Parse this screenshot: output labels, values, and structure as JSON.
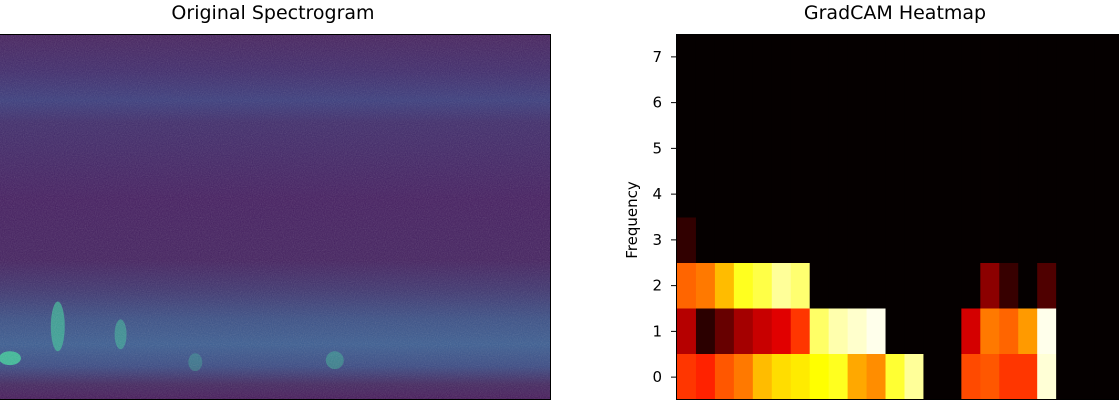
{
  "chart_data": [
    {
      "type": "heatmap",
      "title": "Original Spectrogram",
      "xlabel": "",
      "ylabel": "",
      "colormap": "viridis",
      "colors": {
        "background": "#41195f",
        "band": "#3a6a98",
        "highlight": "#3fc09a"
      }
    },
    {
      "type": "heatmap",
      "title": "GradCAM Heatmap",
      "xlabel": "",
      "ylabel": "Frequency",
      "colormap": "hot",
      "y_ticks": [
        0,
        1,
        2,
        3,
        4,
        5,
        6,
        7
      ],
      "ylim": [
        -0.5,
        7.5
      ],
      "x_cells": 23,
      "rows": [
        [
          0.45,
          0.42,
          0.5,
          0.55,
          0.65,
          0.7,
          0.72,
          0.75,
          0.78,
          0.62,
          0.58,
          0.8,
          0.9,
          0.0,
          0.0,
          0.48,
          0.5,
          0.45,
          0.45,
          0.96,
          0.0,
          0.0,
          0.0
        ],
        [
          0.25,
          0.02,
          0.12,
          0.22,
          0.28,
          0.32,
          0.45,
          0.85,
          0.92,
          0.95,
          0.98,
          0.0,
          0.0,
          0.0,
          0.0,
          0.3,
          0.55,
          0.52,
          0.6,
          0.98,
          0.0,
          0.0,
          0.0
        ],
        [
          0.52,
          0.55,
          0.65,
          0.78,
          0.82,
          0.9,
          0.86,
          0.0,
          0.0,
          0.0,
          0.0,
          0.0,
          0.0,
          0.0,
          0.0,
          0.0,
          0.18,
          0.04,
          0.0,
          0.08,
          0.0,
          0.0,
          0.0
        ],
        [
          0.03,
          0.0,
          0.0,
          0.0,
          0.0,
          0.0,
          0.0,
          0.0,
          0.0,
          0.0,
          0.0,
          0.0,
          0.0,
          0.0,
          0.0,
          0.0,
          0.0,
          0.0,
          0.0,
          0.0,
          0.0,
          0.0,
          0.0
        ],
        [
          0.0,
          0.0,
          0.0,
          0.0,
          0.0,
          0.0,
          0.0,
          0.0,
          0.0,
          0.0,
          0.0,
          0.0,
          0.0,
          0.0,
          0.0,
          0.0,
          0.0,
          0.0,
          0.0,
          0.0,
          0.0,
          0.0,
          0.0
        ],
        [
          0.0,
          0.0,
          0.0,
          0.0,
          0.0,
          0.0,
          0.0,
          0.0,
          0.0,
          0.0,
          0.0,
          0.0,
          0.0,
          0.0,
          0.0,
          0.0,
          0.0,
          0.0,
          0.0,
          0.0,
          0.0,
          0.0,
          0.0
        ],
        [
          0.0,
          0.0,
          0.0,
          0.0,
          0.0,
          0.0,
          0.0,
          0.0,
          0.0,
          0.0,
          0.0,
          0.0,
          0.0,
          0.0,
          0.0,
          0.0,
          0.0,
          0.0,
          0.0,
          0.0,
          0.0,
          0.0,
          0.0
        ],
        [
          0.0,
          0.0,
          0.0,
          0.0,
          0.0,
          0.0,
          0.0,
          0.0,
          0.0,
          0.0,
          0.0,
          0.0,
          0.0,
          0.0,
          0.0,
          0.0,
          0.0,
          0.0,
          0.0,
          0.0,
          0.0,
          0.0,
          0.0
        ]
      ]
    }
  ]
}
